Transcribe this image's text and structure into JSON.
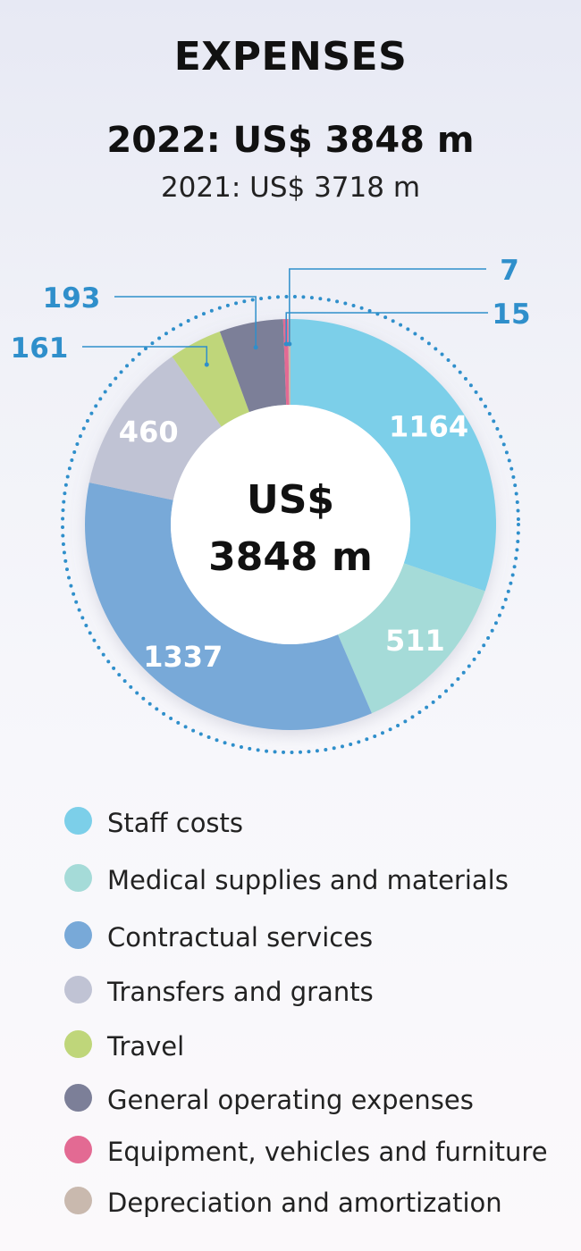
{
  "header": {
    "title": "EXPENSES",
    "current_year": "2022: US$ 3848 m",
    "previous_year": "2021: US$ 3718 m"
  },
  "chart_data": {
    "type": "pie",
    "center_label": [
      "US$",
      "3848 m"
    ],
    "slices": [
      {
        "name": "Staff costs",
        "value": 1164,
        "label": "1164",
        "color": "#7ccfe9"
      },
      {
        "name": "Medical supplies and materials",
        "value": 511,
        "label": "511",
        "color": "#a5dbd8"
      },
      {
        "name": "Contractual services",
        "value": 1337,
        "label": "1337",
        "color": "#78a9d8"
      },
      {
        "name": "Transfers and grants",
        "value": 460,
        "label": "460",
        "color": "#c0c3d4"
      },
      {
        "name": "Travel",
        "value": 161,
        "label": "161",
        "color": "#bfd67a"
      },
      {
        "name": "General operating expenses",
        "value": 193,
        "label": "193",
        "color": "#7c7f98"
      },
      {
        "name": "Equipment, vehicles and furniture",
        "value": 15,
        "label": "15",
        "color": "#e36a93"
      },
      {
        "name": "Depreciation and amortization",
        "value": 7,
        "label": "7",
        "color": "#c9b9ae"
      }
    ],
    "callout_color": "#2f8fcb"
  }
}
